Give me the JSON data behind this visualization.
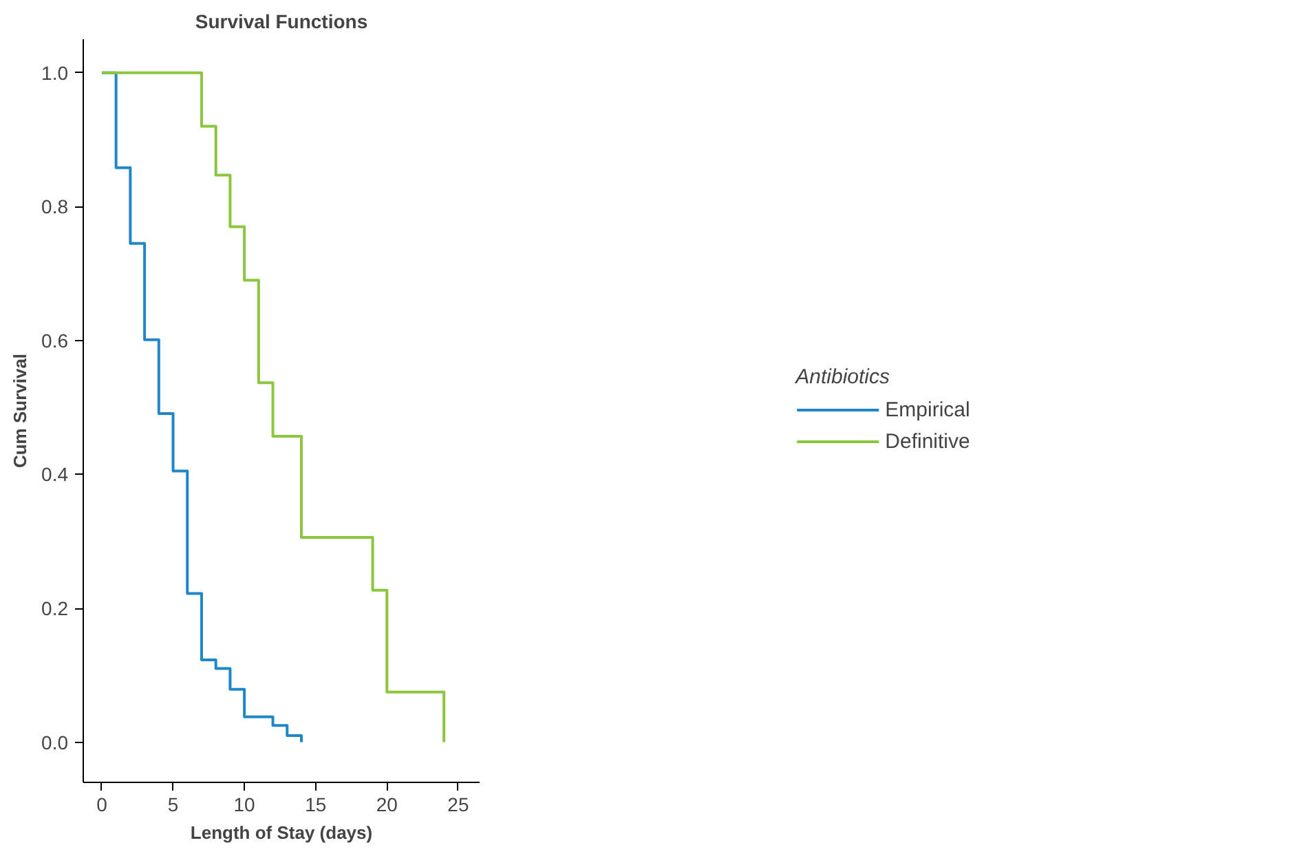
{
  "chart_data": {
    "type": "step",
    "title": "Survival Functions",
    "xlabel": "Length of Stay (days)",
    "ylabel": "Cum Survival",
    "legend_title": "Antibiotics",
    "legend": "right",
    "xlim": [
      -1.3,
      26.5
    ],
    "ylim": [
      -0.06,
      1.05
    ],
    "xticks": [
      0,
      5,
      10,
      15,
      20,
      25
    ],
    "yticks": [
      {
        "value": 0,
        "label": "0.0"
      },
      {
        "value": 0.2,
        "label": "0.2"
      },
      {
        "value": 0.4,
        "label": "0.4"
      },
      {
        "value": 0.6,
        "label": "0.6"
      },
      {
        "value": 0.8,
        "label": "0.8"
      },
      {
        "value": 1,
        "label": "1.0"
      }
    ],
    "grid": false,
    "series": [
      {
        "name": "Empirical",
        "color": "#1f87c8",
        "x": [
          0,
          1,
          2,
          3,
          4,
          5,
          6,
          7,
          8,
          9,
          10,
          12,
          13,
          14
        ],
        "values": [
          1,
          0.858,
          0.745,
          0.601,
          0.491,
          0.405,
          0.222,
          0.123,
          0.11,
          0.079,
          0.038,
          0.025,
          0.01,
          0
        ]
      },
      {
        "name": "Definitive",
        "color": "#8cc63f",
        "x": [
          0,
          7,
          8,
          9,
          10,
          11,
          12,
          14,
          19,
          20,
          24
        ],
        "values": [
          1,
          0.92,
          0.847,
          0.77,
          0.69,
          0.537,
          0.457,
          0.306,
          0.227,
          0.075,
          0
        ]
      }
    ]
  }
}
